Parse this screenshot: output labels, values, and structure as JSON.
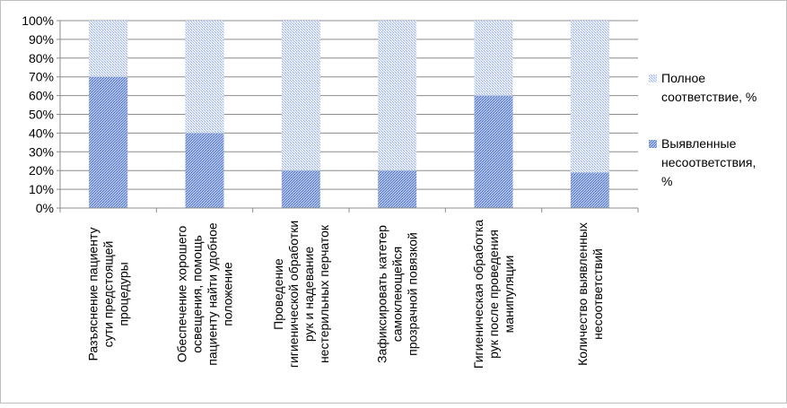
{
  "chart_data": {
    "type": "bar",
    "stacked": true,
    "percent": true,
    "categories": [
      [
        "Разъяснение пациенту",
        "сути предстоящей",
        "процедуры"
      ],
      [
        "Обеспечение хорошего",
        "освещения, помощь",
        "пациенту найти удобное",
        "положение"
      ],
      [
        "Проведение",
        "гигиенической обработки",
        "рук и надевание",
        "нестерильных перчаток"
      ],
      [
        "Зафиксировать катетер",
        "самоклеющейся",
        "прозрачной повязкой"
      ],
      [
        "Гигиеническая обработка",
        "рук после проведения",
        "манипуляции"
      ],
      [
        "Количество выявленных",
        "несоответствий"
      ]
    ],
    "series": [
      {
        "name": "Выявленные несоответствия, %",
        "name_lines": [
          "Выявленные",
          "несоответствия,",
          "%"
        ],
        "values": [
          70,
          40,
          20,
          20,
          60,
          19
        ],
        "color": "#7f9ed8"
      },
      {
        "name": "Полное соответствие, %",
        "name_lines": [
          "Полное",
          "соответствие, %"
        ],
        "values": [
          30,
          60,
          80,
          80,
          40,
          81
        ],
        "color": "#b8c9ec"
      }
    ],
    "yticks": [
      "0%",
      "10%",
      "20%",
      "30%",
      "40%",
      "50%",
      "60%",
      "70%",
      "80%",
      "90%",
      "100%"
    ],
    "ylim": [
      0,
      100
    ],
    "grid": true,
    "legend": "right"
  }
}
